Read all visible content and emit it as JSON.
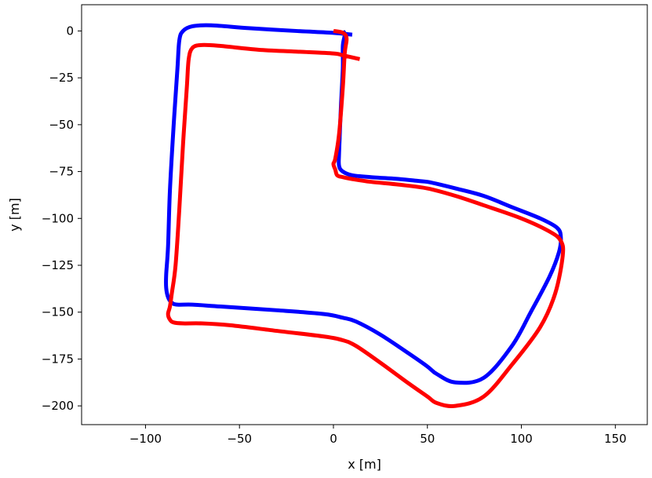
{
  "chart_data": {
    "type": "line",
    "title": "",
    "xlabel": "x [m]",
    "ylabel": "y [m]",
    "xlim": [
      -134,
      167
    ],
    "ylim": [
      -210,
      14
    ],
    "xticks": [
      -100,
      -50,
      0,
      50,
      100,
      150
    ],
    "xtick_labels": [
      "−100",
      "−50",
      "0",
      "50",
      "100",
      "150"
    ],
    "yticks": [
      0,
      -25,
      -50,
      -75,
      -100,
      -125,
      -150,
      -175,
      -200
    ],
    "ytick_labels": [
      "0",
      "−25",
      "−50",
      "−75",
      "−100",
      "−125",
      "−150",
      "−175",
      "−200"
    ],
    "grid": false,
    "series": [
      {
        "color": "#0000ff",
        "x": [
          10,
          0,
          -20,
          -45,
          -65,
          -75,
          -80,
          -82,
          -83,
          -85,
          -87,
          -88,
          -89,
          -89,
          -88,
          -86,
          -83,
          -75,
          -60,
          -30,
          -5,
          5,
          12,
          25,
          40,
          50,
          55,
          65,
          80,
          95,
          105,
          115,
          120,
          121,
          119,
          110,
          95,
          80,
          65,
          57,
          50,
          45,
          35,
          20,
          10,
          5,
          3,
          3,
          4,
          5,
          5,
          6,
          5
        ],
        "y": [
          -2,
          -1,
          0,
          1.5,
          3,
          2.5,
          0,
          -5,
          -20,
          -50,
          -85,
          -115,
          -130,
          -137,
          -142,
          -145,
          -146,
          -146,
          -147,
          -149,
          -151,
          -153,
          -155,
          -162,
          -172,
          -179,
          -183,
          -187.5,
          -185,
          -168,
          -150,
          -131,
          -118,
          -110,
          -105,
          -100,
          -94,
          -88,
          -84,
          -82,
          -80.5,
          -80,
          -79,
          -78,
          -77,
          -75,
          -72,
          -65,
          -40,
          -20,
          -8,
          -2,
          0
        ]
      },
      {
        "color": "#ff0000",
        "x": [
          14,
          5,
          0,
          -20,
          -40,
          -60,
          -70,
          -75,
          -77,
          -78,
          -80,
          -82,
          -84,
          -86,
          -87,
          -88,
          -87,
          -85,
          -80,
          -70,
          -55,
          -30,
          -5,
          5,
          12,
          25,
          40,
          50,
          55,
          65,
          80,
          95,
          110,
          118,
          122,
          121,
          115,
          100,
          80,
          65,
          50,
          35,
          20,
          10,
          5,
          2,
          1,
          0,
          1,
          3,
          5,
          6,
          7,
          5,
          0
        ],
        "y": [
          -15,
          -13,
          -12,
          -11,
          -10,
          -8,
          -7.5,
          -9,
          -15,
          -30,
          -60,
          -95,
          -125,
          -140,
          -147,
          -151,
          -154,
          -155.5,
          -156,
          -156,
          -157,
          -160,
          -163,
          -165,
          -168,
          -177,
          -188,
          -195,
          -198.5,
          -200,
          -195,
          -178,
          -158,
          -140,
          -120,
          -112,
          -107,
          -100,
          -93,
          -88,
          -84,
          -82,
          -80.5,
          -79,
          -78,
          -77,
          -74,
          -71,
          -68,
          -55,
          -30,
          -12,
          -4,
          -1,
          0
        ]
      }
    ]
  }
}
